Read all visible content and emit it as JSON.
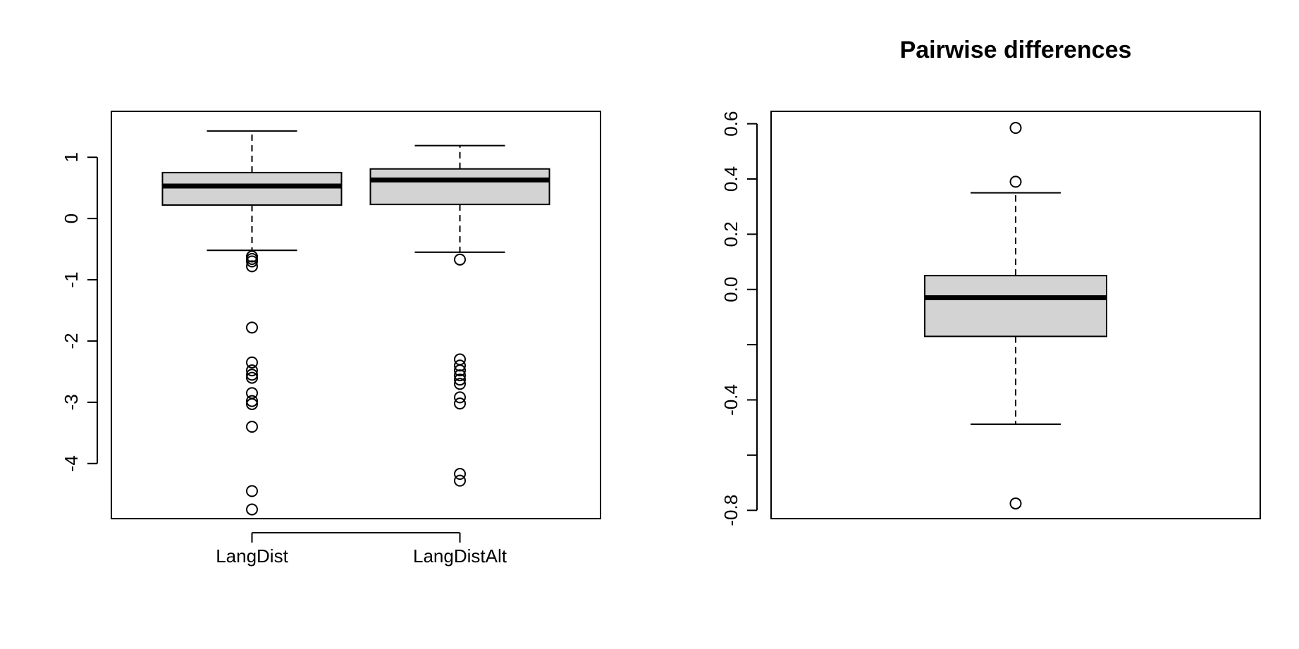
{
  "chart_data": [
    {
      "type": "boxplot",
      "title": "",
      "xlabel": "",
      "ylabel": "",
      "ylim": [
        -4.9,
        1.75
      ],
      "yticks": [
        1,
        0,
        -1,
        -2,
        -3,
        -4
      ],
      "ytick_labels": [
        "1",
        "0",
        "-1",
        "-2",
        "-3",
        "-4"
      ],
      "box_fill": "#d3d3d3",
      "categories": [
        "LangDist",
        "LangDistAlt"
      ],
      "boxes": [
        {
          "name": "LangDist",
          "whisker_low": -0.52,
          "q1": 0.22,
          "median": 0.53,
          "q3": 0.75,
          "whisker_high": 1.43,
          "outliers": [
            -0.62,
            -0.66,
            -0.7,
            -0.78,
            -1.78,
            -2.35,
            -2.48,
            -2.55,
            -2.6,
            -2.85,
            -2.98,
            -3.03,
            -3.4,
            -4.45,
            -4.75
          ]
        },
        {
          "name": "LangDistAlt",
          "whisker_low": -0.55,
          "q1": 0.23,
          "median": 0.63,
          "q3": 0.81,
          "whisker_high": 1.19,
          "outliers": [
            -0.67,
            -2.3,
            -2.4,
            -2.48,
            -2.56,
            -2.63,
            -2.7,
            -2.92,
            -3.02,
            -4.17,
            -4.28
          ]
        }
      ]
    },
    {
      "type": "boxplot",
      "title": "Pairwise differences",
      "xlabel": "",
      "ylabel": "",
      "ylim": [
        -0.83,
        0.645
      ],
      "yticks": [
        0.6,
        0.4,
        0.2,
        0.0,
        -0.2,
        -0.4,
        -0.6,
        -0.8
      ],
      "ytick_labels": [
        "0.6",
        "0.4",
        "0.2",
        "0.0",
        "",
        "-0.4",
        "",
        "-0.8"
      ],
      "box_fill": "#d3d3d3",
      "categories": [],
      "boxes": [
        {
          "name": "",
          "whisker_low": -0.488,
          "q1": -0.17,
          "median": -0.03,
          "q3": 0.05,
          "whisker_high": 0.35,
          "outliers": [
            0.585,
            0.39,
            -0.775
          ]
        }
      ]
    }
  ]
}
